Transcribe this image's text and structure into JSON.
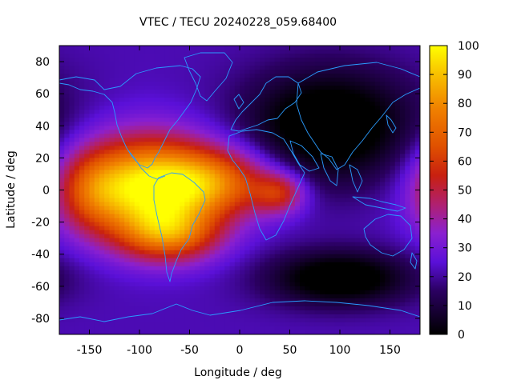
{
  "chart_data": {
    "type": "heatmap",
    "title": "VTEC / TECU 20240228_059.68400",
    "xlabel": "Longitude / deg",
    "ylabel": "Latitude / deg",
    "xlim": [
      -180,
      180
    ],
    "ylim": [
      -90,
      90
    ],
    "x_ticks": [
      -150,
      -100,
      -50,
      0,
      50,
      100,
      150
    ],
    "y_ticks": [
      80,
      60,
      40,
      20,
      0,
      -20,
      -40,
      -60,
      -80
    ],
    "colorbar": {
      "range": [
        0,
        100
      ],
      "ticks": [
        100,
        90,
        80,
        70,
        60,
        50,
        40,
        30,
        20,
        10,
        0
      ]
    },
    "background_level": 22,
    "tec_features": [
      {
        "name": "main-equatorial-peak",
        "lon": -92,
        "lat": 2,
        "peak": 95,
        "sigma_lon": 48,
        "sigma_lat": 22
      },
      {
        "name": "atlantic-extension",
        "lon": -20,
        "lat": 5,
        "peak": 62,
        "sigma_lon": 40,
        "sigma_lat": 15
      },
      {
        "name": "africa-equatorial",
        "lon": 40,
        "lat": -2,
        "peak": 52,
        "sigma_lon": 18,
        "sigma_lat": 9
      },
      {
        "name": "southern-crest",
        "lon": -70,
        "lat": -28,
        "peak": 62,
        "sigma_lon": 35,
        "sigma_lat": 12
      },
      {
        "name": "west-pacific-edge",
        "lon": -150,
        "lat": 0,
        "peak": 45,
        "sigma_lon": 25,
        "sigma_lat": 18
      },
      {
        "name": "asia-trough",
        "lon": 90,
        "lat": 40,
        "peak": -10,
        "sigma_lon": 60,
        "sigma_lat": 25
      },
      {
        "name": "southern-ocean-trough",
        "lon": 100,
        "lat": -55,
        "peak": -8,
        "sigma_lon": 50,
        "sigma_lat": 12
      }
    ],
    "overlay": "coastlines",
    "colormap": "black-purple-red-orange-yellow",
    "colors": {
      "coastline": "#2a9cff",
      "frame": "#000000",
      "background": "#ffffff"
    }
  }
}
